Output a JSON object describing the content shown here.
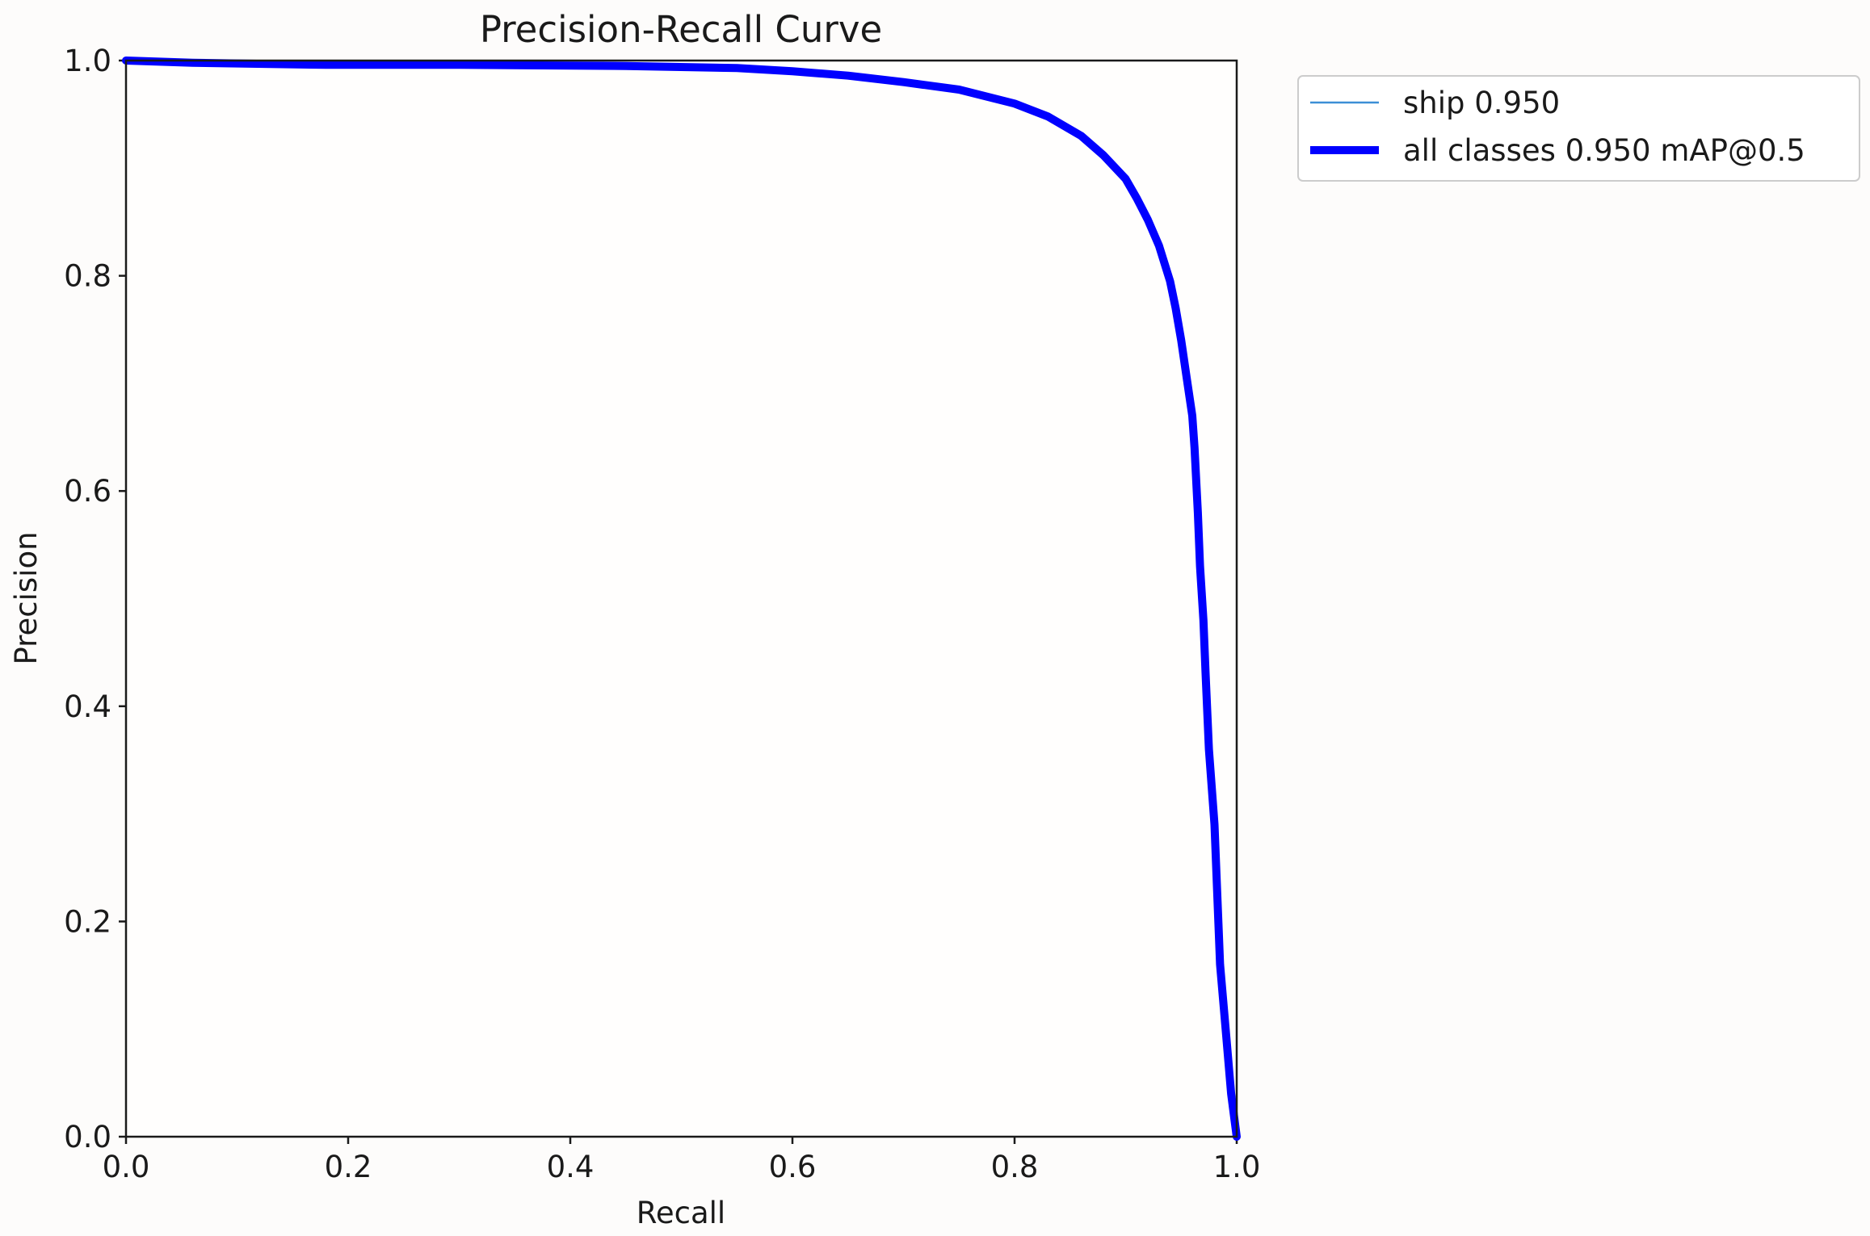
{
  "chart_data": {
    "type": "line",
    "title": "Precision-Recall Curve",
    "xlabel": "Recall",
    "ylabel": "Precision",
    "xlim": [
      0,
      1
    ],
    "ylim": [
      0,
      1
    ],
    "xticks": [
      "0.0",
      "0.2",
      "0.4",
      "0.6",
      "0.8",
      "1.0"
    ],
    "yticks": [
      "0.0",
      "0.2",
      "0.4",
      "0.6",
      "0.8",
      "1.0"
    ],
    "grid": false,
    "legend_position": "outside-top-right",
    "series": [
      {
        "name": "ship 0.950",
        "color": "#3c8fd6",
        "line_style": "thin",
        "x": [
          0.0,
          0.06,
          0.18,
          0.3,
          0.45,
          0.55,
          0.6,
          0.65,
          0.7,
          0.75,
          0.8,
          0.83,
          0.86,
          0.88,
          0.9,
          0.91,
          0.92,
          0.93,
          0.94,
          0.945,
          0.95,
          0.955,
          0.96,
          0.962,
          0.965,
          0.967,
          0.97,
          0.972,
          0.975,
          0.98,
          0.985,
          0.99,
          0.995,
          1.0
        ],
        "y": [
          1.0,
          0.998,
          0.996,
          0.996,
          0.995,
          0.993,
          0.99,
          0.986,
          0.98,
          0.973,
          0.96,
          0.948,
          0.93,
          0.912,
          0.89,
          0.872,
          0.852,
          0.828,
          0.795,
          0.77,
          0.74,
          0.705,
          0.67,
          0.64,
          0.58,
          0.53,
          0.48,
          0.43,
          0.36,
          0.29,
          0.16,
          0.1,
          0.04,
          0.0
        ]
      },
      {
        "name": "all classes 0.950 mAP@0.5",
        "color": "#0000ff",
        "line_style": "thick",
        "x": [
          0.0,
          0.06,
          0.18,
          0.3,
          0.45,
          0.55,
          0.6,
          0.65,
          0.7,
          0.75,
          0.8,
          0.83,
          0.86,
          0.88,
          0.9,
          0.91,
          0.92,
          0.93,
          0.94,
          0.945,
          0.95,
          0.955,
          0.96,
          0.962,
          0.965,
          0.967,
          0.97,
          0.972,
          0.975,
          0.98,
          0.985,
          0.99,
          0.995,
          1.0
        ],
        "y": [
          1.0,
          0.998,
          0.996,
          0.996,
          0.995,
          0.993,
          0.99,
          0.986,
          0.98,
          0.973,
          0.96,
          0.948,
          0.93,
          0.912,
          0.89,
          0.872,
          0.852,
          0.828,
          0.795,
          0.77,
          0.74,
          0.705,
          0.67,
          0.64,
          0.58,
          0.53,
          0.48,
          0.43,
          0.36,
          0.29,
          0.16,
          0.1,
          0.04,
          0.0
        ]
      }
    ]
  }
}
